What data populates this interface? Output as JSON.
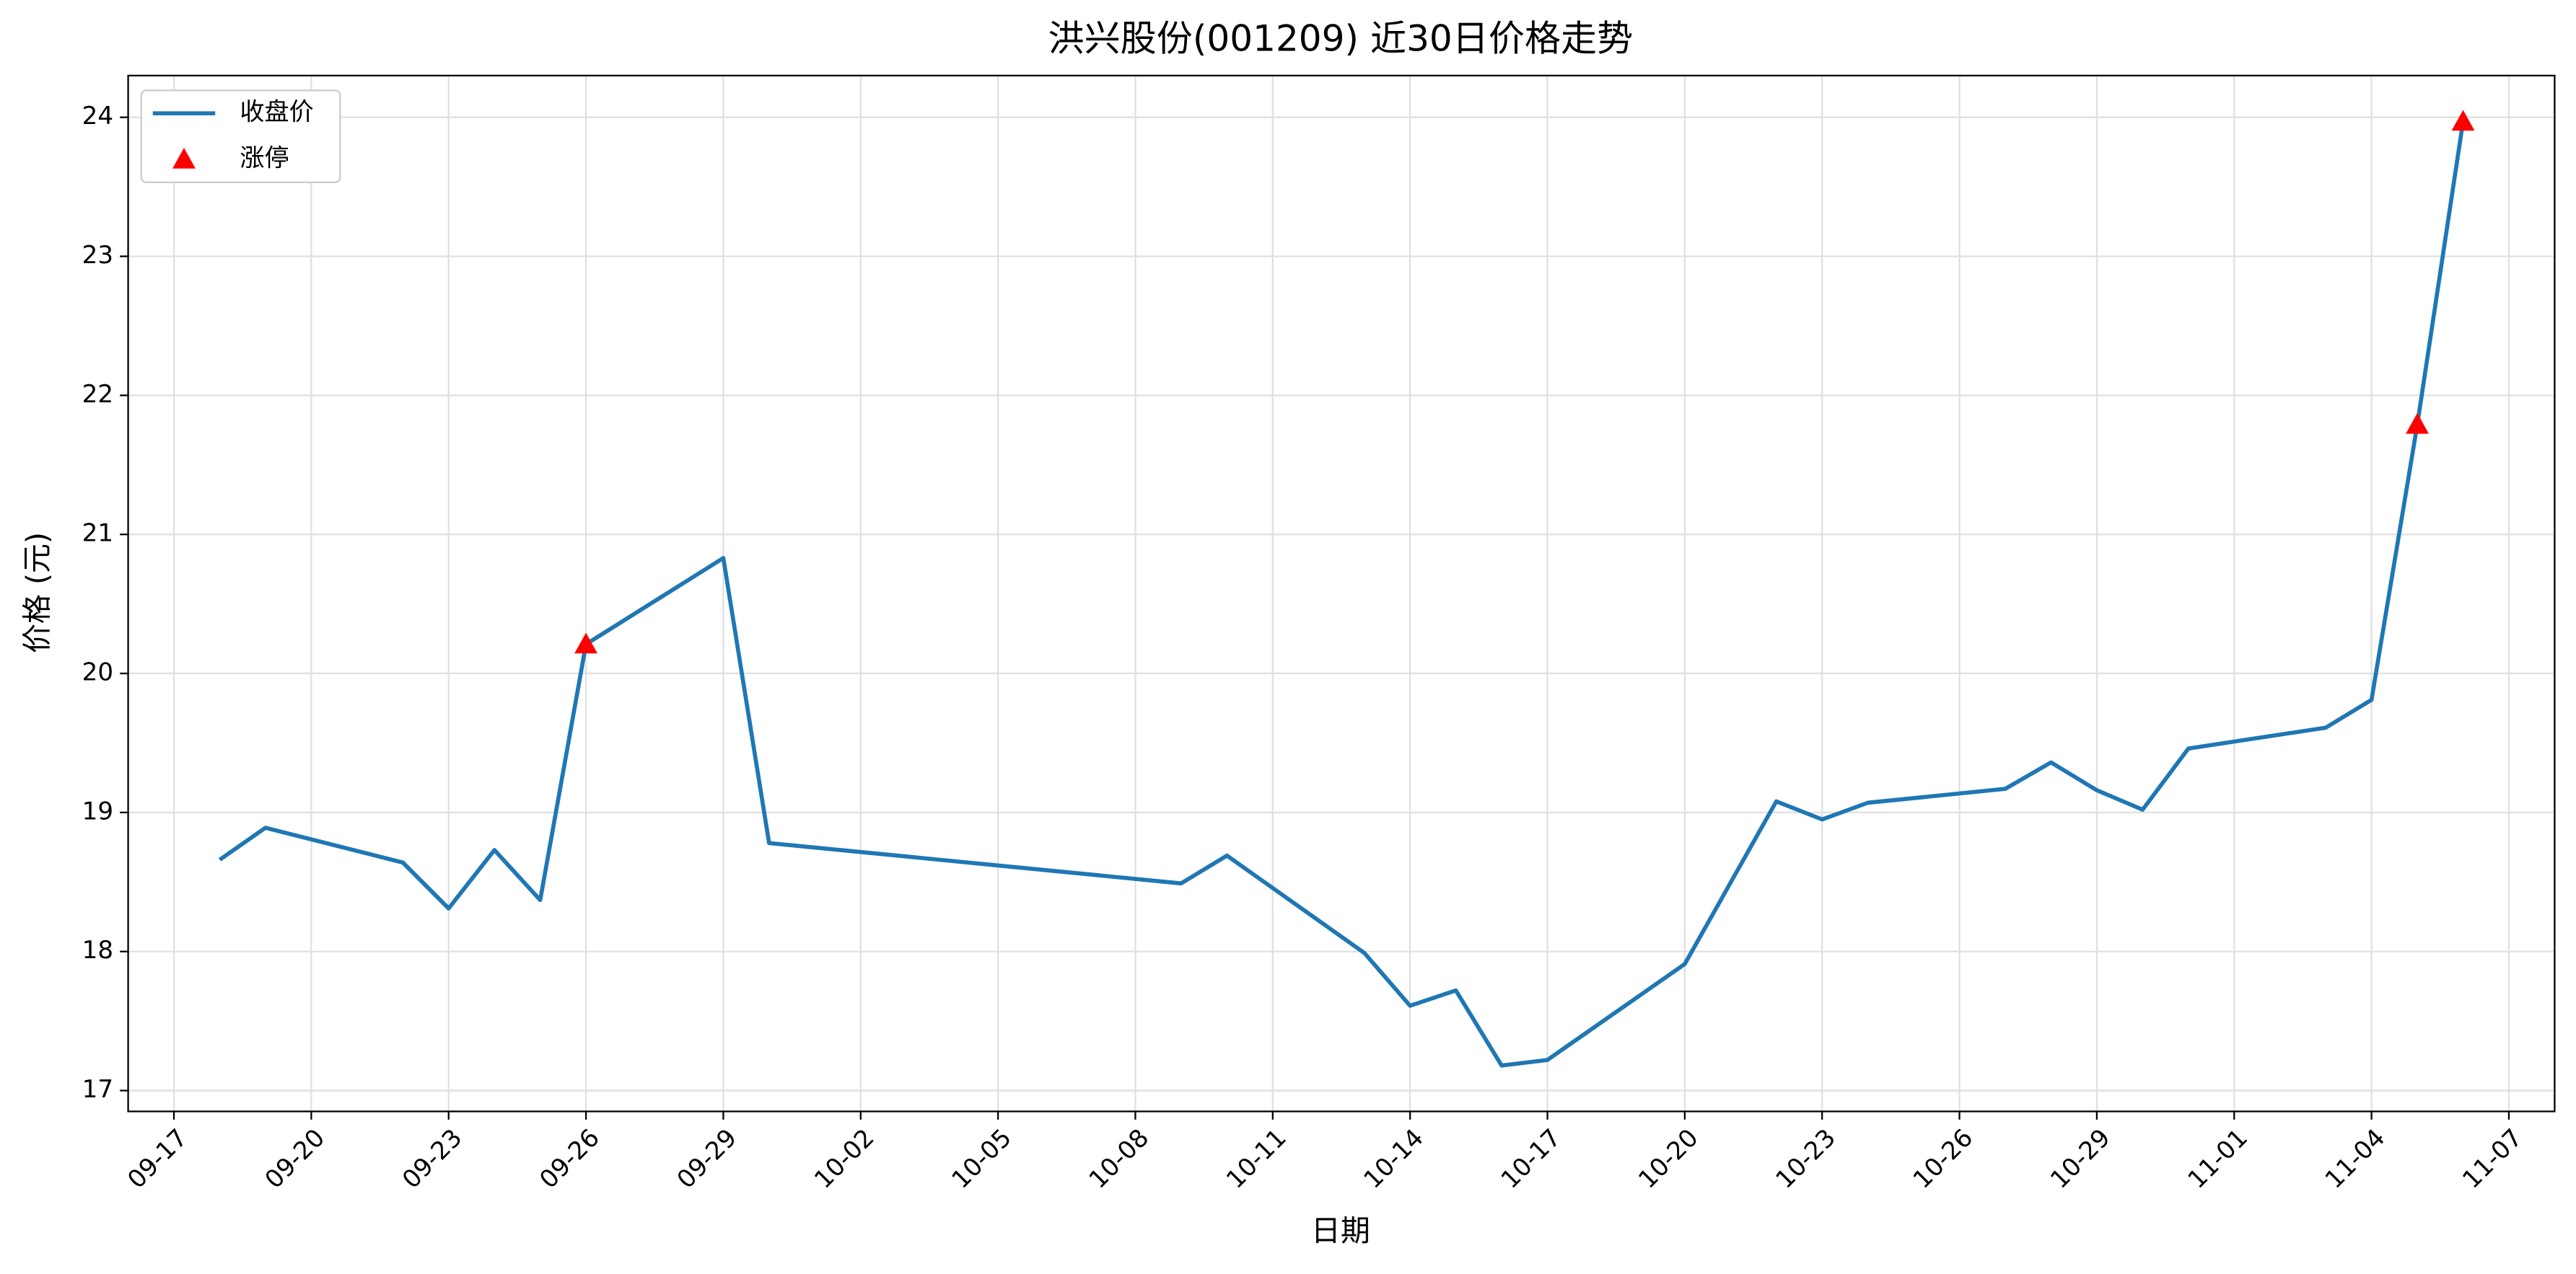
{
  "chart_data": {
    "type": "line",
    "title": "洪兴股份(001209) 近30日价格走势",
    "xlabel": "日期",
    "ylabel": "价格 (元)",
    "series": [
      {
        "name": "收盘价",
        "color": "#1f77b4",
        "marker": "line",
        "x": [
          "09-18",
          "09-19",
          "09-22",
          "09-23",
          "09-24",
          "09-25",
          "09-26",
          "09-29",
          "09-30",
          "10-09",
          "10-10",
          "10-13",
          "10-14",
          "10-15",
          "10-16",
          "10-17",
          "10-20",
          "10-22",
          "10-23",
          "10-24",
          "10-27",
          "10-28",
          "10-29",
          "10-30",
          "10-31",
          "11-03",
          "11-04",
          "11-05",
          "11-06"
        ],
        "values": [
          18.66,
          18.89,
          18.64,
          18.31,
          18.73,
          18.37,
          20.21,
          20.83,
          18.78,
          18.49,
          18.69,
          17.99,
          17.61,
          17.72,
          17.18,
          17.22,
          17.91,
          19.08,
          18.95,
          19.07,
          19.17,
          19.36,
          19.16,
          19.02,
          19.46,
          19.61,
          19.81,
          21.79,
          23.97
        ]
      },
      {
        "name": "涨停",
        "color": "#ff0000",
        "marker": "triangle",
        "x": [
          "09-26",
          "11-05",
          "11-06"
        ],
        "values": [
          20.21,
          21.79,
          23.97
        ]
      }
    ],
    "xlim": [
      "09-16",
      "11-08"
    ],
    "xticks": [
      "09-17",
      "09-20",
      "09-23",
      "09-26",
      "09-29",
      "10-02",
      "10-05",
      "10-08",
      "10-11",
      "10-14",
      "10-17",
      "10-20",
      "10-23",
      "10-26",
      "10-29",
      "11-01",
      "11-04",
      "11-07"
    ],
    "ylim": [
      16.85,
      24.3
    ],
    "yticks": [
      17,
      18,
      19,
      20,
      21,
      22,
      23,
      24
    ],
    "grid": true,
    "legend": "upper left"
  }
}
